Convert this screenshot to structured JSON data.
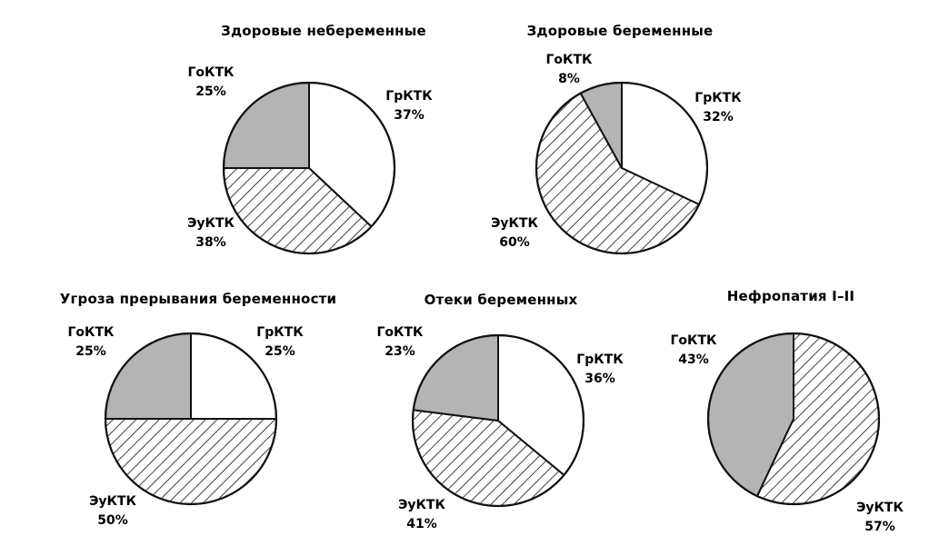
{
  "chart_data": [
    {
      "type": "pie",
      "title": "Здоровые небеременные",
      "slices": [
        {
          "label": "ГрКТК",
          "pct_text": "37%",
          "value": 37,
          "fill": "white"
        },
        {
          "label": "ЭуКТК",
          "pct_text": "38%",
          "value": 38,
          "fill": "hatch"
        },
        {
          "label": "ГоКТК",
          "pct_text": "25%",
          "value": 25,
          "fill": "gray"
        }
      ]
    },
    {
      "type": "pie",
      "title": "Здоровые беременные",
      "slices": [
        {
          "label": "ГрКТК",
          "pct_text": "32%",
          "value": 32,
          "fill": "white"
        },
        {
          "label": "ЭуКТК",
          "pct_text": "60%",
          "value": 60,
          "fill": "hatch"
        },
        {
          "label": "ГоКТК",
          "pct_text": "8%",
          "value": 8,
          "fill": "gray"
        }
      ]
    },
    {
      "type": "pie",
      "title": "Угроза прерывания беременности",
      "slices": [
        {
          "label": "ГрКТК",
          "pct_text": "25%",
          "value": 25,
          "fill": "white"
        },
        {
          "label": "ЭуКТК",
          "pct_text": "50%",
          "value": 50,
          "fill": "hatch"
        },
        {
          "label": "ГоКТК",
          "pct_text": "25%",
          "value": 25,
          "fill": "gray"
        }
      ]
    },
    {
      "type": "pie",
      "title": "Отеки беременных",
      "slices": [
        {
          "label": "ГрКТК",
          "pct_text": "36%",
          "value": 36,
          "fill": "white"
        },
        {
          "label": "ЭуКТК",
          "pct_text": "41%",
          "value": 41,
          "fill": "hatch"
        },
        {
          "label": "ГоКТК",
          "pct_text": "23%",
          "value": 23,
          "fill": "gray"
        }
      ]
    },
    {
      "type": "pie",
      "title": "Нефропатия I–II",
      "slices": [
        {
          "label": "ЭуКТК",
          "pct_text": "57%",
          "value": 57,
          "fill": "hatch"
        },
        {
          "label": "ГоКТК",
          "pct_text": "43%",
          "value": 43,
          "fill": "gray"
        }
      ]
    }
  ],
  "colors": {
    "gray_fill": "#b4b4b4",
    "white_fill": "#ffffff",
    "stroke": "#111111"
  }
}
